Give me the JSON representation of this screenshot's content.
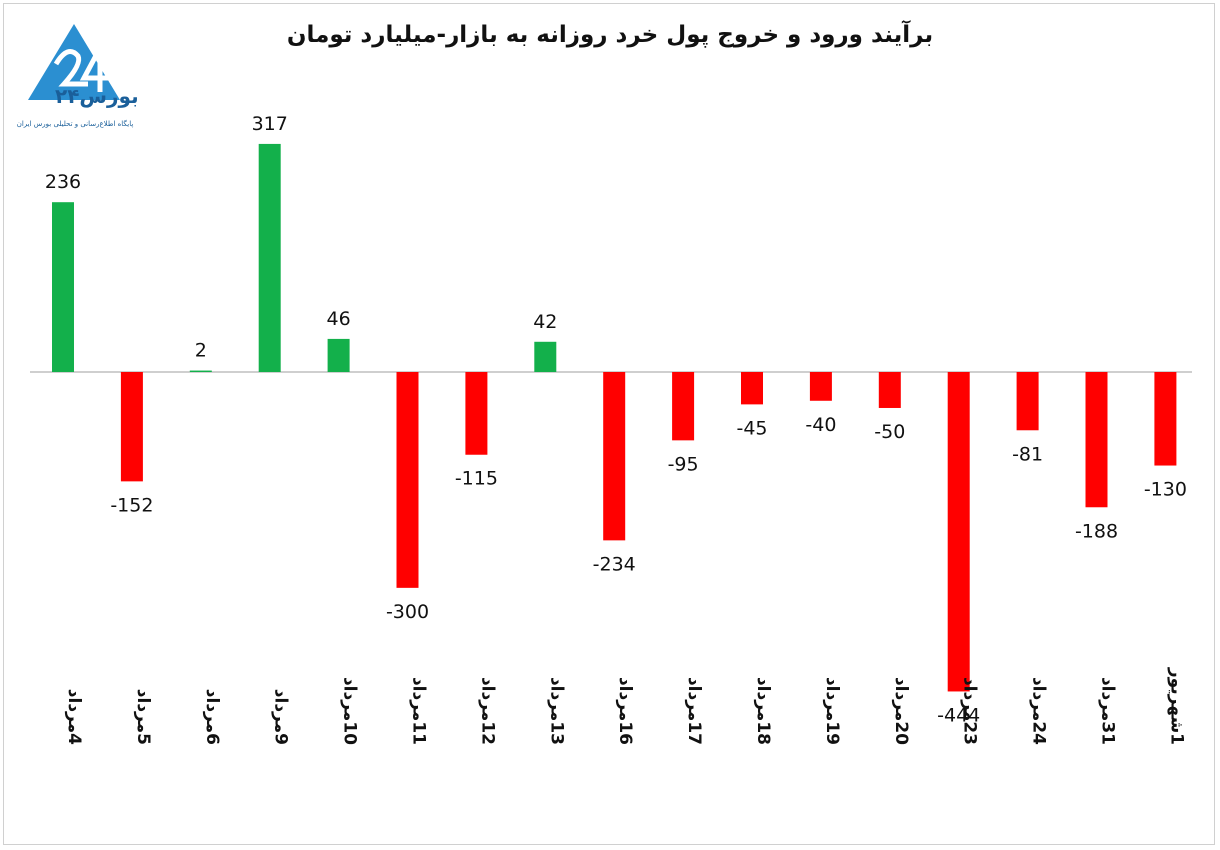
{
  "logo": {
    "name": "بورس۲۴",
    "tagline": "پایگاه اطلاع‌رسانی و تحلیلی بورس ایران"
  },
  "colors": {
    "positive": "#13b04b",
    "negative": "#ff0000",
    "axis": "#bfbfbf",
    "logo": "#2b8fd1"
  },
  "chart_data": {
    "type": "bar",
    "title": "برآیند ورود و خروج پول خرد روزانه به بازار-میلیارد تومان",
    "categories": [
      "4مرداد",
      "5مرداد",
      "6مرداد",
      "9مرداد",
      "10مرداد",
      "11مرداد",
      "12مرداد",
      "13مرداد",
      "16مرداد",
      "17مرداد",
      "18مرداد",
      "19مرداد",
      "20مرداد",
      "23مرداد",
      "24مرداد",
      "31مرداد",
      "1شهریور"
    ],
    "values": [
      236,
      -152,
      2,
      317,
      46,
      -300,
      -115,
      42,
      -234,
      -95,
      -45,
      -40,
      -50,
      -444,
      -81,
      -188,
      -130
    ],
    "labels": [
      "236",
      "-152",
      "2",
      "317",
      "46",
      "-300",
      "-115",
      "42",
      "-234",
      "-95",
      "-45",
      "-40",
      "-50",
      "-444",
      "-81",
      "-188",
      "-130"
    ],
    "grid": false,
    "legend": "none"
  }
}
